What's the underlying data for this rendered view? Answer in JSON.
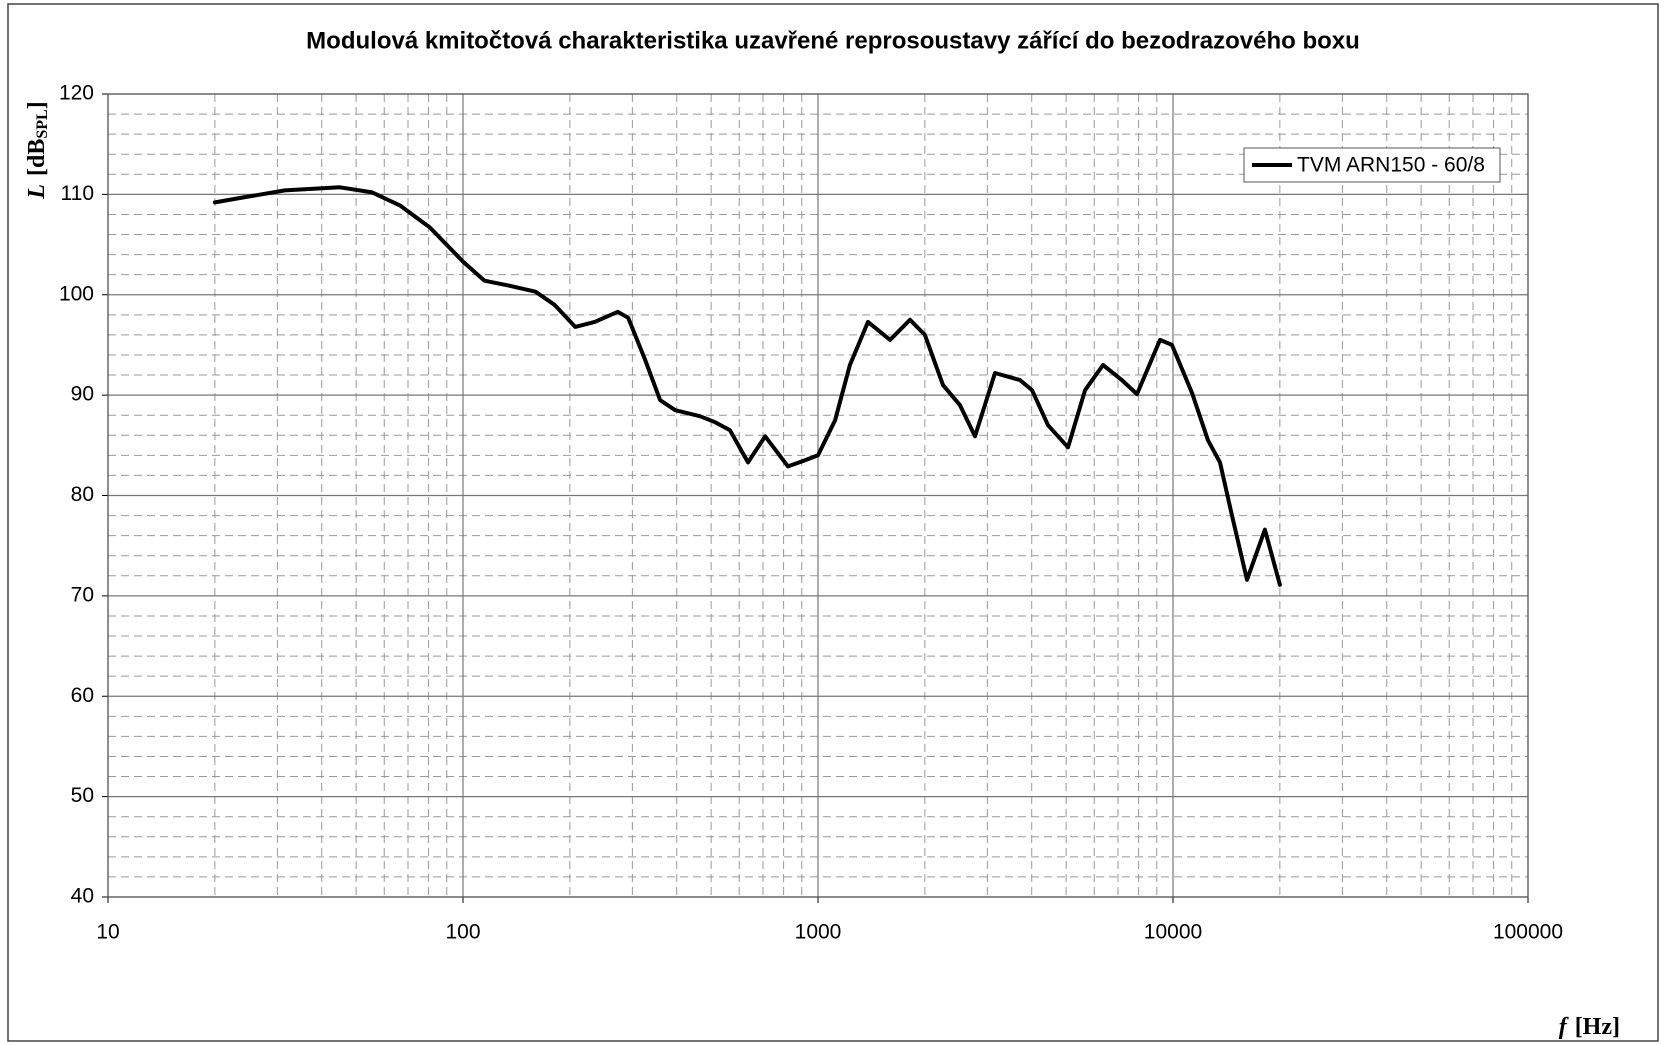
{
  "chart_data": {
    "type": "line",
    "title": "Modulová kmitočtová charakteristika uzavřené reprosoustavy zářící do bezodrazového boxu",
    "y_label": {
      "symbol": "L",
      "open": "[dB",
      "subscript": "SPL",
      "close": "]"
    },
    "x_label": {
      "symbol": "f",
      "unit": "[Hz]"
    },
    "x_log": true,
    "xlim": [
      10,
      100000
    ],
    "xticks": [
      10,
      100,
      1000,
      10000,
      100000
    ],
    "minor_xticks": [
      20,
      30,
      40,
      50,
      60,
      70,
      80,
      90,
      200,
      300,
      400,
      500,
      600,
      700,
      800,
      900,
      2000,
      3000,
      4000,
      5000,
      6000,
      7000,
      8000,
      9000,
      20000,
      30000,
      40000,
      50000,
      60000,
      70000,
      80000,
      90000
    ],
    "ylim": [
      40,
      120
    ],
    "yticks": [
      40,
      50,
      60,
      70,
      80,
      90,
      100,
      110,
      120
    ],
    "minor_yticks": [
      42,
      44,
      46,
      48,
      52,
      54,
      56,
      58,
      62,
      64,
      66,
      68,
      72,
      74,
      76,
      78,
      82,
      84,
      86,
      88,
      92,
      94,
      96,
      98,
      102,
      104,
      106,
      108,
      112,
      114,
      116,
      118
    ],
    "grid": true,
    "legend": "upper right",
    "x": [
      20,
      25,
      31.5,
      45,
      55.5,
      66.4,
      80.7,
      100,
      115,
      135,
      160,
      181,
      207,
      235,
      273,
      292,
      326,
      359,
      396,
      465,
      513,
      565,
      635,
      710,
      823,
      918,
      1000,
      1117,
      1230,
      1383,
      1596,
      1816,
      2000,
      2249,
      2512,
      2768,
      3153,
      3708,
      4007,
      4446,
      5061,
      5653,
      6352,
      7179,
      7918,
      9190,
      9930,
      11317,
      12552,
      13560,
      14662,
      16156,
      18148,
      20000
    ],
    "series": [
      {
        "name": "TVM ARN150 - 60/8",
        "color": "#000000",
        "values": [
          109.2,
          109.8,
          110.4,
          110.7,
          110.2,
          108.9,
          106.7,
          103.3,
          101.4,
          100.9,
          100.3,
          99,
          96.8,
          97.3,
          98.3,
          97.7,
          93.5,
          89.5,
          88.5,
          87.9,
          87.3,
          86.5,
          83.3,
          85.9,
          82.9,
          83.5,
          84,
          87.5,
          93,
          97.3,
          95.5,
          97.5,
          96,
          91,
          89,
          85.9,
          92.2,
          91.5,
          90.5,
          87,
          84.8,
          90.5,
          93,
          91.5,
          90.1,
          95.5,
          95,
          90.2,
          85.5,
          83.3,
          78,
          71.6,
          76.6,
          71.1
        ]
      }
    ]
  }
}
